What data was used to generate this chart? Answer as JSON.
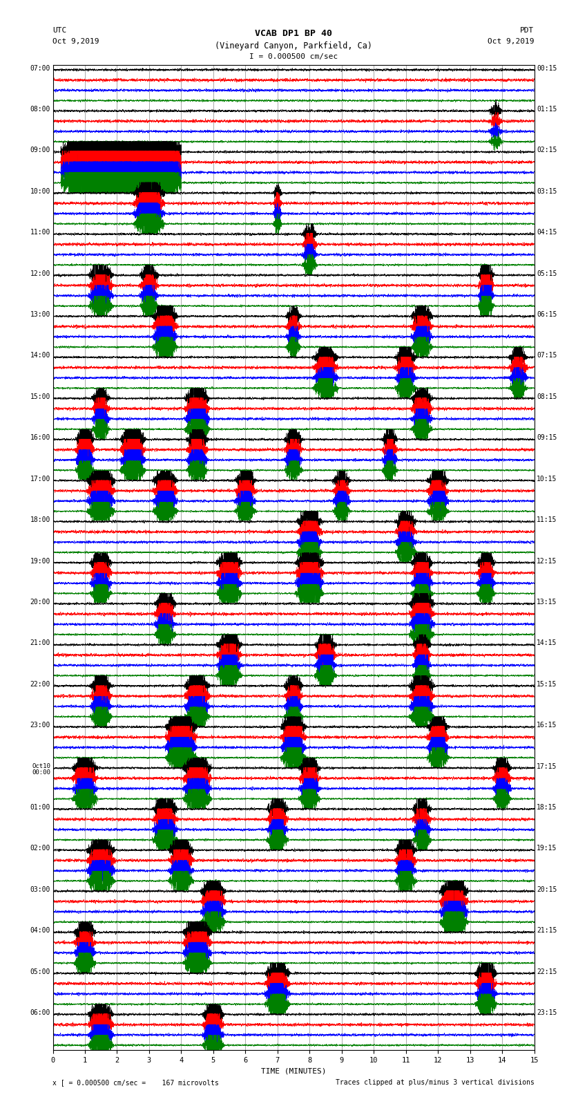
{
  "title_line1": "VCAB DP1 BP 40",
  "title_line2": "(Vineyard Canyon, Parkfield, Ca)",
  "scale_text": "I = 0.000500 cm/sec",
  "utc_label": "UTC",
  "pdt_label": "PDT",
  "date_left": "Oct 9,2019",
  "date_right": "Oct 9,2019",
  "left_times": [
    "07:00",
    "08:00",
    "09:00",
    "10:00",
    "11:00",
    "12:00",
    "13:00",
    "14:00",
    "15:00",
    "16:00",
    "17:00",
    "18:00",
    "19:00",
    "20:00",
    "21:00",
    "22:00",
    "23:00",
    "Oct10\n00:00",
    "01:00",
    "02:00",
    "03:00",
    "04:00",
    "05:00",
    "06:00"
  ],
  "right_times": [
    "00:15",
    "01:15",
    "02:15",
    "03:15",
    "04:15",
    "05:15",
    "06:15",
    "07:15",
    "08:15",
    "09:15",
    "10:15",
    "11:15",
    "12:15",
    "13:15",
    "14:15",
    "15:15",
    "16:15",
    "17:15",
    "18:15",
    "19:15",
    "20:15",
    "21:15",
    "22:15",
    "23:15"
  ],
  "xlabel": "TIME (MINUTES)",
  "bottom_left": "x [ = 0.000500 cm/sec =    167 microvolts",
  "bottom_right": "Traces clipped at plus/minus 3 vertical divisions",
  "n_rows": 24,
  "n_traces_per_row": 4,
  "minutes": 15,
  "background": "white",
  "trace_color_order": [
    "black",
    "red",
    "blue",
    "green"
  ],
  "fig_width": 8.5,
  "fig_height": 16.13,
  "dpi": 100
}
